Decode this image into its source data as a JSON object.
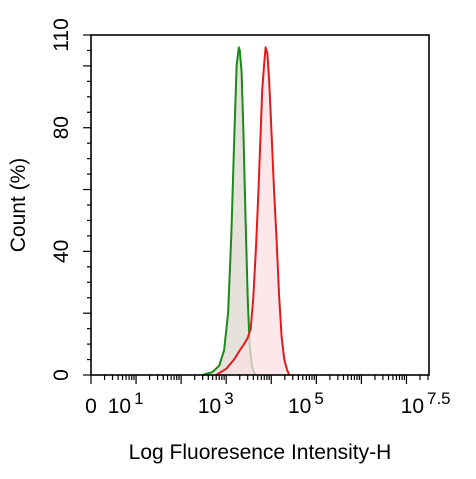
{
  "chart_data": {
    "type": "area",
    "title": "",
    "xlabel": "Log Fluoresence Intensity-H",
    "ylabel": "Count  (%)",
    "x_scale": "log",
    "xlim": [
      1,
      31622776
    ],
    "ylim": [
      0,
      110
    ],
    "grid": false,
    "legend": "none",
    "x_tick_labels": [
      {
        "value": 1,
        "base": "0",
        "exp": ""
      },
      {
        "value": 10,
        "base": "10",
        "exp": "1"
      },
      {
        "value": 1000,
        "base": "10",
        "exp": "3"
      },
      {
        "value": 100000,
        "base": "10",
        "exp": "5"
      },
      {
        "value": 31622776,
        "base": "10",
        "exp": "7.5"
      }
    ],
    "y_ticks": [
      0,
      40,
      80,
      110
    ],
    "series": [
      {
        "color": "#1a8a1a",
        "fill": "#ddd8cf",
        "x": [
          300,
          500,
          700,
          900,
          1100,
          1300,
          1500,
          1700,
          1900,
          2000,
          2200,
          2400,
          2700,
          3000,
          3300,
          3700,
          4100,
          4500
        ],
        "y": [
          0,
          1,
          3,
          8,
          20,
          45,
          75,
          100,
          106,
          105,
          98,
          80,
          50,
          25,
          10,
          3,
          1,
          0
        ]
      },
      {
        "color": "#e31a1c",
        "fill": "#fbe0e4",
        "x": [
          600,
          1000,
          1500,
          2000,
          2500,
          3000,
          3500,
          4000,
          4600,
          5200,
          5800,
          6300,
          6900,
          7500,
          8200,
          9000,
          10000,
          11500,
          13000,
          15000,
          17000,
          19500,
          22000,
          25000
        ],
        "y": [
          0,
          2,
          5,
          8,
          10,
          12,
          15,
          25,
          42,
          60,
          78,
          92,
          100,
          106,
          104,
          95,
          80,
          60,
          45,
          25,
          12,
          5,
          2,
          0
        ]
      }
    ]
  }
}
